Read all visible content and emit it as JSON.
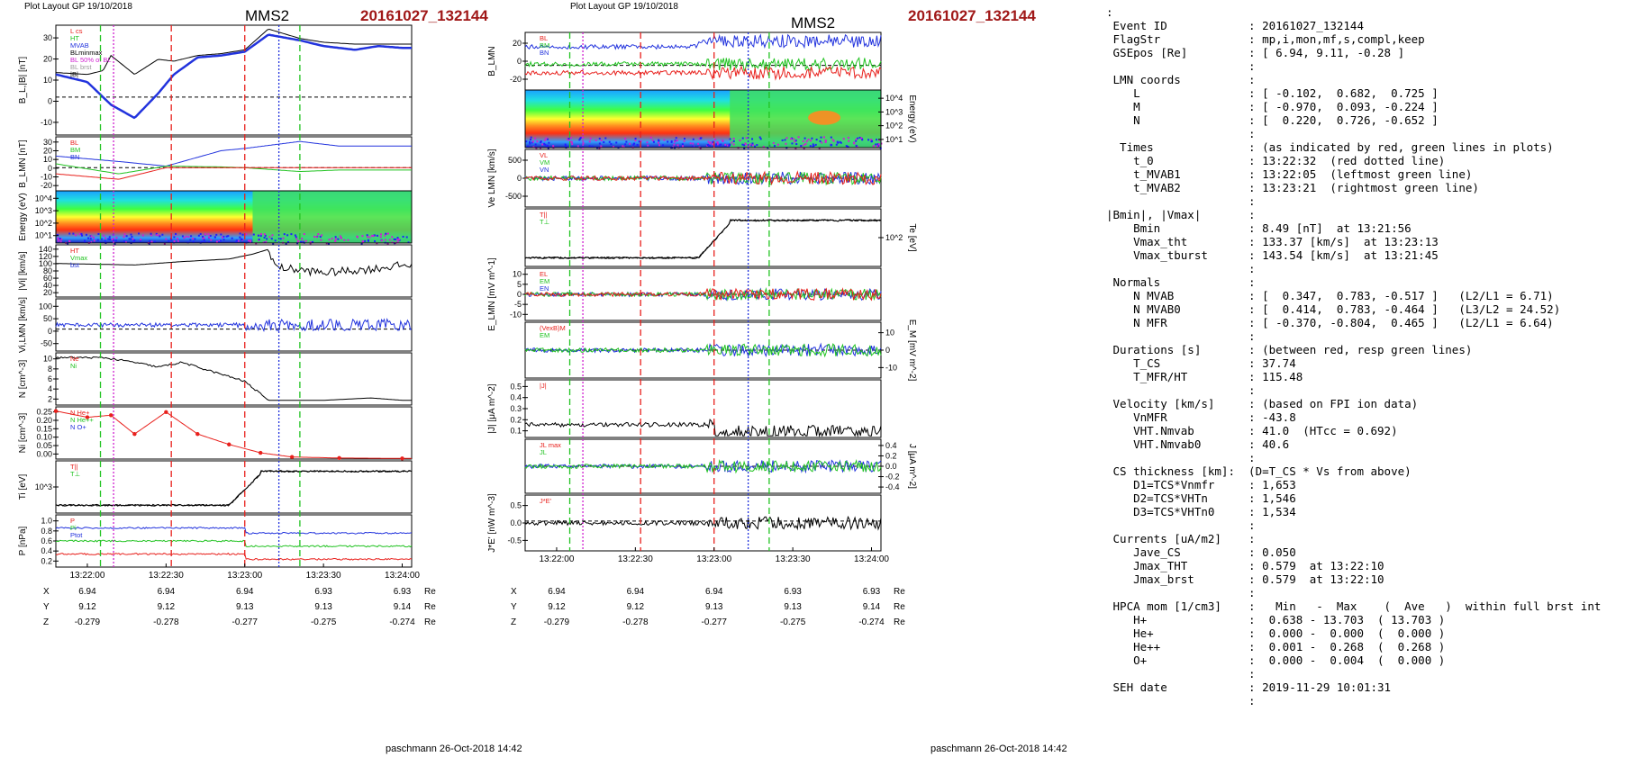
{
  "header": {
    "left_caption": "Plot Layout GP 19/10/2018",
    "right_caption": "Plot Layout GP 19/10/2018",
    "spacecraft": "MMS2",
    "event": "20161027_132144"
  },
  "footer": {
    "left": "paschmann 26-Oct-2018 14:42",
    "right": "paschmann 26-Oct-2018 14:42"
  },
  "time_ticks": [
    "13:22:00",
    "13:22:30",
    "13:23:00",
    "13:23:30",
    "13:24:00"
  ],
  "position_table": {
    "rows": [
      {
        "label": "X",
        "values": [
          "6.94",
          "6.94",
          "6.94",
          "6.93",
          "6.93"
        ],
        "unit": "Re"
      },
      {
        "label": "Y",
        "values": [
          "9.12",
          "9.12",
          "9.13",
          "9.13",
          "9.14"
        ],
        "unit": "Re"
      },
      {
        "label": "Z",
        "values": [
          "-0.279",
          "-0.278",
          "-0.277",
          "-0.275",
          "-0.274"
        ],
        "unit": "Re"
      }
    ]
  },
  "colors": {
    "red": "#e8201c",
    "green": "#22c322",
    "blue": "#2233dd",
    "black": "#000000",
    "magenta": "#d020d0",
    "gray": "#9a9a9a",
    "event": "#a01818"
  },
  "marker_lines": [
    {
      "time": "13:22:05",
      "color": "green",
      "style": "dashed",
      "label": "t_MVAB1"
    },
    {
      "time": "13:22:10",
      "color": "magenta",
      "style": "dotted"
    },
    {
      "time": "13:22:32",
      "color": "red",
      "style": "dashed",
      "label": "t_0"
    },
    {
      "time": "13:23:00",
      "color": "red",
      "style": "dashed"
    },
    {
      "time": "13:23:13",
      "color": "blue",
      "style": "dotted"
    },
    {
      "time": "13:23:21",
      "color": "green",
      "style": "dashed",
      "label": "t_MVAB2"
    }
  ],
  "summary": {
    "lines": [
      ":",
      " Event ID            : 20161027_132144",
      " FlagStr             : mp,i,mon,mf,s,compl,keep",
      " GSEpos [Re]         : [ 6.94, 9.11, -0.28 ]",
      "                     :",
      " LMN coords          :",
      "    L                : [ -0.102,  0.682,  0.725 ]",
      "    M                : [ -0.970,  0.093, -0.224 ]",
      "    N                : [  0.220,  0.726, -0.652 ]",
      "                     :",
      "  Times              : (as indicated by red, green lines in plots)",
      "    t_0              : 13:22:32  (red dotted line)",
      "    t_MVAB1          : 13:22:05  (leftmost green line)",
      "    t_MVAB2          : 13:23:21  (rightmost green line)",
      "                     :",
      "|Bmin|, |Vmax|       :",
      "    Bmin             : 8.49 [nT]  at 13:21:56",
      "    Vmax_tht         : 133.37 [km/s]  at 13:23:13",
      "    Vmax_tburst      : 143.54 [km/s]  at 13:21:45",
      "                     :",
      " Normals             :",
      "    N MVAB           : [  0.347,  0.783, -0.517 ]   (L2/L1 = 6.71)",
      "    N MVAB0          : [  0.414,  0.783, -0.464 ]   (L3/L2 = 24.52)",
      "    N MFR            : [ -0.370, -0.804,  0.465 ]   (L2/L1 = 6.64)",
      "                     :",
      " Durations [s]       : (between red, resp green lines)",
      "    T_CS             : 37.74",
      "    T_MFR/HT         : 115.48",
      "                     :",
      " Velocity [km/s]     : (based on FPI ion data)",
      "    VnMFR            : -43.8",
      "    VHT.Nmvab        : 41.0  (HTcc = 0.692)",
      "    VHT.Nmvab0       : 40.6",
      "                     :",
      " CS thickness [km]:  (D=T_CS * Vs from above)",
      "    D1=TCS*Vnmfr     : 1,653",
      "    D2=TCS*VHTn      : 1,546",
      "    D3=TCS*VHTn0     : 1,534",
      "                     :",
      " Currents [uA/m2]    :",
      "    Jave_CS          : 0.050",
      "    Jmax_THT         : 0.579  at 13:22:10",
      "    Jmax_brst        : 0.579  at 13:22:10",
      "                     :",
      " HPCA mom [1/cm3]    :   Min   -  Max    (  Ave   )  within full brst int",
      "    H+               :  0.638 - 13.703  ( 13.703 )",
      "    He+              :  0.000 -  0.000  (  0.000 )",
      "    He++             :  0.001 -  0.268  (  0.268 )",
      "    O+               :  0.000 -  0.004  (  0.000 )",
      "                     :",
      " SEH date            : 2019-11-29 10:01:31",
      "                     :"
    ]
  },
  "chart_data": [
    {
      "type": "line",
      "panel": "left-B",
      "ylabel": "B_L,|B| [nT]",
      "ylim": [
        -20,
        38
      ],
      "yticks": [
        "30",
        "20",
        "10",
        "0",
        "-10"
      ],
      "legend": [
        "L cs",
        "HT",
        "MVAB",
        "BLminmax",
        "BL 50% of BL",
        "BL brst",
        "|B|"
      ],
      "x_minutes": [
        -0.2,
        0.0,
        0.1,
        0.15,
        0.3,
        0.45,
        0.55,
        0.7,
        0.85,
        1.0,
        1.15,
        1.35,
        1.5,
        1.7,
        1.85,
        2.0
      ],
      "series": [
        {
          "name": "BL",
          "color": "blue",
          "values": [
            12,
            8,
            0,
            -4,
            -11,
            2,
            12,
            21,
            22,
            24,
            33,
            30,
            27,
            25,
            27,
            26
          ]
        },
        {
          "name": "|B|",
          "color": "black",
          "values": [
            13,
            12,
            14,
            22,
            12,
            20,
            19,
            22,
            23,
            25,
            36,
            31,
            29,
            28,
            28,
            28
          ]
        }
      ]
    },
    {
      "type": "line",
      "panel": "left-BLMN",
      "ylabel": "B_LMN [nT]",
      "ylim": [
        -30,
        40
      ],
      "yticks": [
        "30",
        "20",
        "10",
        "0",
        "-10",
        "-20"
      ],
      "legend": [
        "BL",
        "BM",
        "BN"
      ],
      "x_minutes": [
        -0.2,
        0.2,
        0.5,
        0.85,
        1.0,
        1.35,
        1.6,
        2.0
      ],
      "series": [
        {
          "name": "BL",
          "color": "blue",
          "values": [
            15,
            8,
            2,
            22,
            25,
            34,
            28,
            28
          ]
        },
        {
          "name": "BM",
          "color": "green",
          "values": [
            5,
            -8,
            2,
            1,
            0,
            -5,
            -3,
            -3
          ]
        },
        {
          "name": "BN",
          "color": "red",
          "values": [
            -8,
            -15,
            0,
            0,
            0,
            0,
            0,
            0
          ]
        }
      ]
    },
    {
      "type": "heatmap",
      "panel": "left-spectrogram",
      "ylabel": "Energy (eV)",
      "yticks": [
        "10^4",
        "10^3",
        "10^2",
        "10^1"
      ]
    },
    {
      "type": "line",
      "panel": "left-Vi",
      "ylabel": "|Vi| [km/s]",
      "ylim": [
        10,
        150
      ],
      "yticks": [
        "140",
        "120",
        "100",
        "80",
        "60",
        "40",
        "20"
      ],
      "legend": [
        "HT",
        "Vmax",
        "bst"
      ],
      "x_minutes": [
        -0.2,
        0.3,
        0.6,
        0.9,
        1.05,
        1.15,
        1.2,
        1.5,
        1.8,
        2.0
      ],
      "series": [
        {
          "name": "|Vi|",
          "color": "black",
          "values": [
            100,
            96,
            105,
            112,
            125,
            138,
            90,
            75,
            85,
            95
          ]
        }
      ]
    },
    {
      "type": "line",
      "panel": "left-ViLMN",
      "ylabel": "Vi,LMN [km/s]",
      "ylim": [
        -80,
        110
      ],
      "yticks": [
        "100",
        "50",
        "0",
        "-50"
      ]
    },
    {
      "type": "line",
      "panel": "left-N",
      "ylabel": "N [cm^-3]",
      "ylim": [
        0,
        11
      ],
      "yticks": [
        "10",
        "8",
        "6",
        "4",
        "2"
      ],
      "legend": [
        "Ne",
        "Ni"
      ],
      "x_minutes": [
        -0.2,
        0.1,
        0.3,
        0.45,
        0.6,
        0.8,
        1.0,
        1.15,
        1.5,
        1.8,
        2.0
      ],
      "series": [
        {
          "name": "Ni",
          "color": "black",
          "values": [
            10,
            10,
            9,
            8,
            9,
            7,
            5,
            1,
            1,
            1.5,
            1
          ]
        }
      ]
    },
    {
      "type": "line",
      "panel": "left-HPCA",
      "ylabel": "Ni [cm^-3]",
      "ylim": [
        0,
        0.25
      ],
      "yticks": [
        "0.25",
        "0.20",
        "0.15",
        "0.10",
        "0.05",
        "0.00"
      ],
      "legend": [
        "N He+",
        "N He++",
        "N O+"
      ],
      "x_minutes": [
        -0.2,
        0.0,
        0.15,
        0.3,
        0.5,
        0.7,
        0.9,
        1.1,
        1.3,
        1.6,
        2.0
      ],
      "series": [
        {
          "name": "He++",
          "color": "red",
          "values": [
            0.23,
            0.2,
            0.21,
            0.12,
            0.225,
            0.12,
            0.07,
            0.03,
            0.01,
            0.005,
            0.003
          ]
        }
      ]
    },
    {
      "type": "line",
      "panel": "left-Ti",
      "ylabel": "Ti [eV]",
      "legend": [
        "T||",
        "T⊥"
      ],
      "yticks": [
        "10^3"
      ]
    },
    {
      "type": "line",
      "panel": "left-P",
      "ylabel": "P [nPa]",
      "ylim": [
        0,
        1.0
      ],
      "yticks": [
        "1.0",
        "0.8",
        "0.6",
        "0.4",
        "0.2"
      ],
      "legend": [
        "P",
        "Pi",
        "Ptot"
      ]
    },
    {
      "type": "line",
      "panel": "right-BLMN",
      "ylabel": "B_LMN",
      "ylim": [
        -30,
        40
      ],
      "yticks": [
        "20",
        "0",
        "-20"
      ],
      "legend": [
        "BL",
        "BM",
        "BN"
      ]
    },
    {
      "type": "heatmap",
      "panel": "right-spectrogram",
      "ylabel": "Energy (eV)",
      "yticks": [
        "10^4",
        "10^3",
        "10^2",
        "10^1"
      ]
    },
    {
      "type": "line",
      "panel": "right-Ve",
      "ylabel": "Ve LMN [km/s]",
      "ylim": [
        -700,
        700
      ],
      "yticks": [
        "500",
        "0",
        "-500"
      ],
      "legend": [
        "VL",
        "VM",
        "VN"
      ]
    },
    {
      "type": "line",
      "panel": "right-Te",
      "ylabel": "Te [eV]",
      "legend": [
        "T||",
        "T⊥"
      ],
      "yticks": [
        "10^2"
      ]
    },
    {
      "type": "line",
      "panel": "right-E",
      "ylabel": "E_LMN [mV m^-1]",
      "ylim": [
        -15,
        15
      ],
      "yticks": [
        "10",
        "5",
        "0",
        "-5",
        "-10"
      ],
      "legend": [
        "EL",
        "EM",
        "EN"
      ]
    },
    {
      "type": "line",
      "panel": "right-EM",
      "ylabel": "E_M [mV m^-2]",
      "ylim": [
        -15,
        15
      ],
      "yticks": [
        "10",
        "0",
        "-10"
      ],
      "legend": [
        "(VexB)M",
        "EM"
      ]
    },
    {
      "type": "line",
      "panel": "right-J",
      "ylabel": "|J| [μA m^-2]",
      "ylim": [
        0,
        0.55
      ],
      "yticks": [
        "0.5",
        "0.4",
        "0.3",
        "0.2",
        "0.1"
      ],
      "legend": [
        "|J|"
      ]
    },
    {
      "type": "line",
      "panel": "right-JLMN",
      "ylabel": "J [μA m^-2]",
      "ylim": [
        -0.5,
        0.5
      ],
      "yticks": [
        "0.4",
        "0.2",
        "0.0",
        "-0.2",
        "-0.4"
      ],
      "legend": [
        "JL max",
        "JL"
      ]
    },
    {
      "type": "line",
      "panel": "right-JE",
      "ylabel": "J*E' [nW m^-3]",
      "ylim": [
        -0.8,
        0.7
      ],
      "yticks": [
        "0.5",
        "0.0",
        "-0.5"
      ],
      "legend": [
        "J*E'"
      ]
    }
  ]
}
